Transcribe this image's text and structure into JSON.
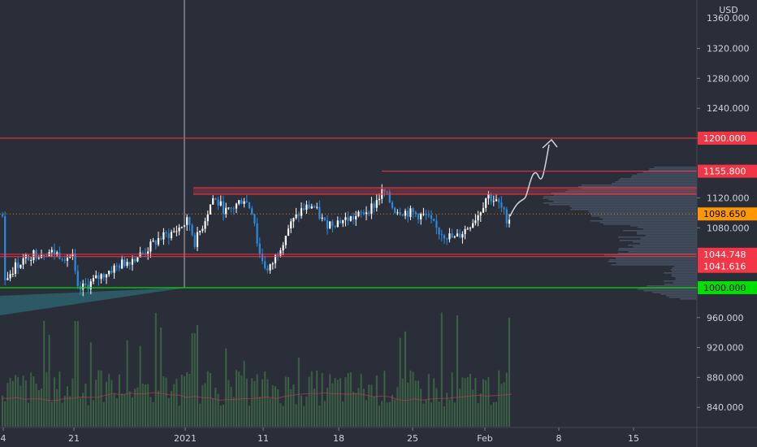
{
  "chart_data": {
    "type": "candlestick",
    "currency": "USD",
    "y_axis": {
      "ticks": [
        "1320.000",
        "1280.000",
        "1240.000",
        "1200.000",
        "1120.000",
        "1080.000",
        "1000.000",
        "960.000",
        "920.000",
        "880.000",
        "840.000"
      ],
      "tick_values": [
        1320,
        1280,
        1240,
        1200,
        1120,
        1080,
        1000,
        960,
        920,
        880,
        840
      ],
      "top_partial_label": "1360.000",
      "range": [
        820,
        1370
      ]
    },
    "x_axis": {
      "labels": [
        "4",
        "21",
        "2021",
        "11",
        "18",
        "25",
        "Feb",
        "8",
        "15"
      ]
    },
    "price_levels": [
      {
        "value": 1200.0,
        "label": "1200.000",
        "color": "#f23645"
      },
      {
        "value": 1155.8,
        "label": "1155.800",
        "color": "#f23645"
      },
      {
        "value": 1098.65,
        "label": "1098.650",
        "color": "#ff9800"
      },
      {
        "value": 1044.748,
        "label": "1044.748",
        "color": "#f23645"
      },
      {
        "value": 1041.616,
        "label": "1041.616",
        "color": "#f23645"
      },
      {
        "value": 1000.0,
        "label": "1000.000",
        "color": "#00e000"
      }
    ],
    "colors": {
      "background": "#2a2e39",
      "up_candle": "#ffffff",
      "down_candle": "#2a8be0",
      "volume": "#3e6a48",
      "resistance_line": "#f23645",
      "support_line": "#00e000",
      "volume_profile": "#5a6b80"
    }
  }
}
